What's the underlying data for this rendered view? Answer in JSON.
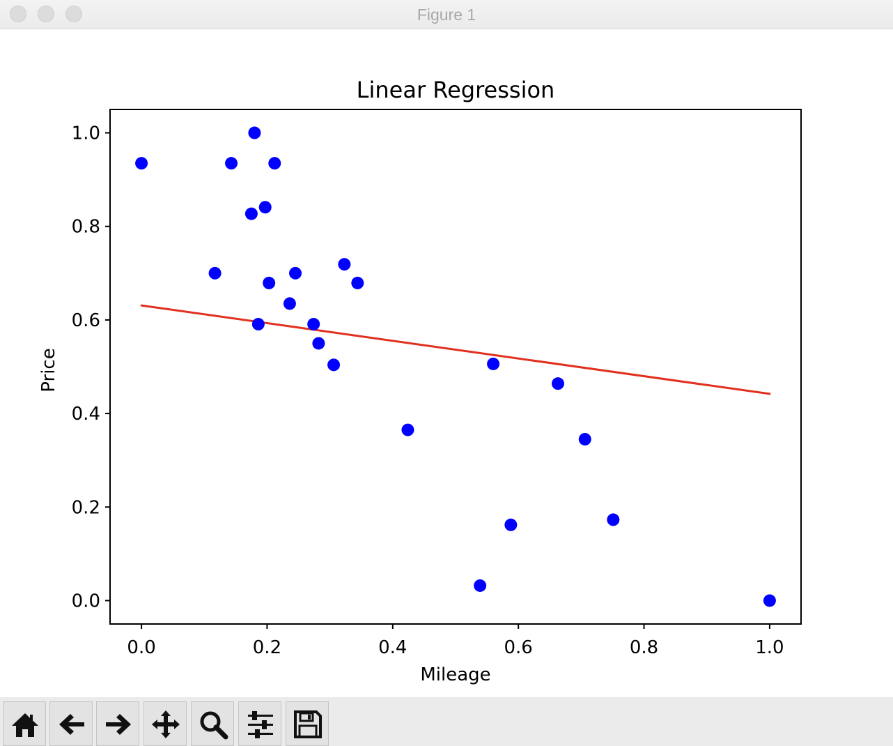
{
  "window": {
    "title": "Figure 1"
  },
  "toolbar": {
    "buttons": [
      {
        "icon": "home-icon"
      },
      {
        "icon": "back-arrow-icon"
      },
      {
        "icon": "forward-arrow-icon"
      },
      {
        "icon": "pan-icon"
      },
      {
        "icon": "zoom-icon"
      },
      {
        "icon": "sliders-icon"
      },
      {
        "icon": "save-icon"
      }
    ]
  },
  "chart_data": {
    "type": "scatter",
    "title": "Linear Regression",
    "xlabel": "Mileage",
    "ylabel": "Price",
    "xlim": [
      -0.05,
      1.05
    ],
    "ylim": [
      -0.05,
      1.05
    ],
    "xticks": [
      "0.0",
      "0.2",
      "0.4",
      "0.6",
      "0.8",
      "1.0"
    ],
    "yticks": [
      "0.0",
      "0.2",
      "0.4",
      "0.6",
      "0.8",
      "1.0"
    ],
    "grid": false,
    "marker_color": "#0000ff",
    "line_color": "#e1301e",
    "points": [
      [
        0.0,
        0.935
      ],
      [
        0.143,
        0.935
      ],
      [
        0.18,
        1.0
      ],
      [
        0.212,
        0.935
      ],
      [
        0.175,
        0.827
      ],
      [
        0.197,
        0.841
      ],
      [
        0.117,
        0.7
      ],
      [
        0.203,
        0.679
      ],
      [
        0.245,
        0.7
      ],
      [
        0.323,
        0.719
      ],
      [
        0.344,
        0.679
      ],
      [
        0.236,
        0.635
      ],
      [
        0.186,
        0.591
      ],
      [
        0.274,
        0.591
      ],
      [
        0.282,
        0.55
      ],
      [
        0.306,
        0.504
      ],
      [
        0.424,
        0.365
      ],
      [
        0.56,
        0.506
      ],
      [
        0.663,
        0.464
      ],
      [
        0.706,
        0.345
      ],
      [
        0.539,
        0.032
      ],
      [
        0.588,
        0.162
      ],
      [
        0.751,
        0.173
      ],
      [
        1.0,
        0.0
      ]
    ],
    "regression": {
      "x": [
        0.0,
        1.0
      ],
      "y": [
        0.631,
        0.442
      ]
    }
  }
}
